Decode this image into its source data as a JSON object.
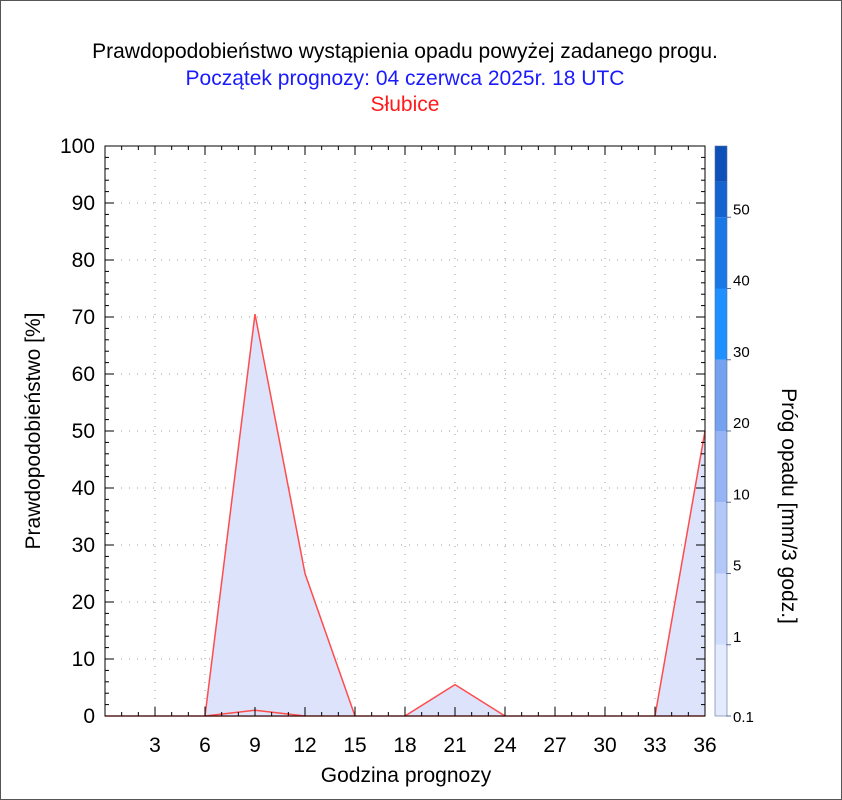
{
  "chart_data": {
    "type": "area",
    "title": "Prawdopodobieństwo wystąpienia opadu powyżej zadanego progu.",
    "subtitle": "Początek prognozy: 04 czerwca 2025r. 18 UTC",
    "location": "Słubice",
    "xlabel": "Godzina prognozy",
    "ylabel": "Prawdopodobieństwo [%]",
    "xlim": [
      0,
      36
    ],
    "ylim": [
      0,
      100
    ],
    "x_ticks": [
      3,
      6,
      9,
      12,
      15,
      18,
      21,
      24,
      27,
      30,
      33,
      36
    ],
    "y_ticks": [
      0,
      10,
      20,
      30,
      40,
      50,
      60,
      70,
      80,
      90,
      100
    ],
    "grid": true,
    "x": [
      0,
      3,
      6,
      9,
      12,
      15,
      18,
      21,
      24,
      27,
      30,
      33,
      36
    ],
    "series": [
      {
        "threshold": 0.1,
        "values": [
          0,
          0,
          0,
          70.5,
          25,
          0,
          0,
          5.5,
          0,
          0,
          0,
          0,
          50
        ]
      },
      {
        "threshold": 1,
        "values": [
          0,
          0,
          0,
          1,
          0,
          0,
          0,
          0,
          0,
          0,
          0,
          0,
          0
        ]
      }
    ],
    "fill_color": "#dce3fb",
    "line_color": "#ff4c4c",
    "colorbar": {
      "label": "Próg opadu [mm/3 godz.]",
      "tick_labels": [
        "0.1",
        "1",
        "5",
        "10",
        "20",
        "30",
        "40",
        "50"
      ],
      "colors": [
        "#e4ebff",
        "#cfdcfb",
        "#b4c8f7",
        "#96b4f3",
        "#74a2ee",
        "#1e90ff",
        "#1a78e6",
        "#1463cf",
        "#0d50b8",
        "#073fa0"
      ]
    }
  }
}
